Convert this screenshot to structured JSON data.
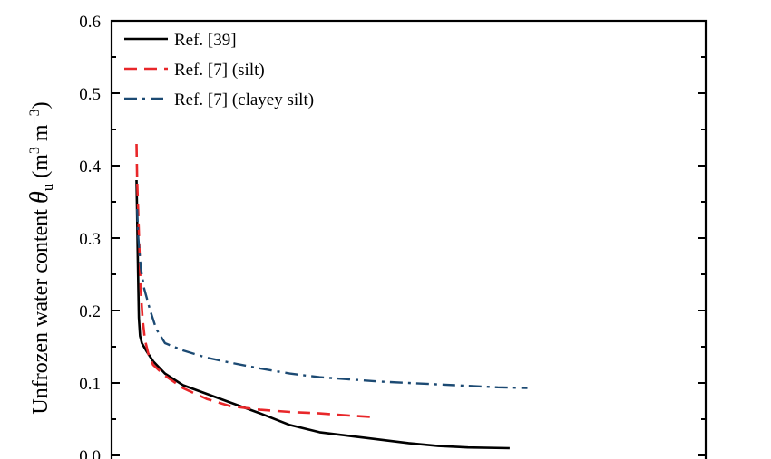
{
  "chart_data": {
    "type": "line",
    "ylabel": {
      "prefix": "Unfrozen water content ",
      "symbol": "θ",
      "subscript": "u",
      "unit_open": " (m",
      "unit_exp1": "3",
      "unit_mid": " m",
      "unit_exp2": "−3",
      "unit_close": ")"
    },
    "xlabel": "",
    "xlim": [
      0,
      1
    ],
    "ylim": [
      0,
      0.6
    ],
    "yticks": [
      "0.0",
      "0.1",
      "0.2",
      "0.3",
      "0.4",
      "0.5",
      "0.6"
    ],
    "grid": false,
    "legend_position": "top-left",
    "series": [
      {
        "name": "Ref. [39]",
        "color": "#000000",
        "style": "solid",
        "points": [
          [
            0.042,
            0.38
          ],
          [
            0.043,
            0.33
          ],
          [
            0.044,
            0.28
          ],
          [
            0.045,
            0.23
          ],
          [
            0.046,
            0.19
          ],
          [
            0.048,
            0.165
          ],
          [
            0.051,
            0.155
          ],
          [
            0.058,
            0.145
          ],
          [
            0.07,
            0.13
          ],
          [
            0.09,
            0.113
          ],
          [
            0.12,
            0.097
          ],
          [
            0.16,
            0.085
          ],
          [
            0.2,
            0.073
          ],
          [
            0.25,
            0.058
          ],
          [
            0.3,
            0.042
          ],
          [
            0.35,
            0.032
          ],
          [
            0.4,
            0.027
          ],
          [
            0.45,
            0.022
          ],
          [
            0.5,
            0.017
          ],
          [
            0.55,
            0.013
          ],
          [
            0.6,
            0.011
          ],
          [
            0.67,
            0.01
          ]
        ]
      },
      {
        "name": "Ref. [7] (silt)",
        "color": "#e8272a",
        "style": "dashed",
        "points": [
          [
            0.042,
            0.43
          ],
          [
            0.043,
            0.38
          ],
          [
            0.045,
            0.33
          ],
          [
            0.047,
            0.28
          ],
          [
            0.049,
            0.23
          ],
          [
            0.052,
            0.19
          ],
          [
            0.056,
            0.16
          ],
          [
            0.062,
            0.14
          ],
          [
            0.07,
            0.125
          ],
          [
            0.09,
            0.11
          ],
          [
            0.12,
            0.093
          ],
          [
            0.16,
            0.078
          ],
          [
            0.2,
            0.068
          ],
          [
            0.25,
            0.063
          ],
          [
            0.3,
            0.06
          ],
          [
            0.35,
            0.058
          ],
          [
            0.4,
            0.055
          ],
          [
            0.44,
            0.053
          ]
        ]
      },
      {
        "name": "Ref. [7] (clayey silt)",
        "color": "#1c4a73",
        "style": "dashdot",
        "points": [
          [
            0.043,
            0.34
          ],
          [
            0.045,
            0.3
          ],
          [
            0.049,
            0.26
          ],
          [
            0.055,
            0.23
          ],
          [
            0.065,
            0.2
          ],
          [
            0.075,
            0.175
          ],
          [
            0.09,
            0.155
          ],
          [
            0.12,
            0.145
          ],
          [
            0.16,
            0.135
          ],
          [
            0.2,
            0.128
          ],
          [
            0.25,
            0.12
          ],
          [
            0.3,
            0.113
          ],
          [
            0.35,
            0.108
          ],
          [
            0.4,
            0.105
          ],
          [
            0.45,
            0.102
          ],
          [
            0.5,
            0.1
          ],
          [
            0.55,
            0.098
          ],
          [
            0.6,
            0.096
          ],
          [
            0.65,
            0.094
          ],
          [
            0.7,
            0.093
          ]
        ]
      }
    ]
  }
}
